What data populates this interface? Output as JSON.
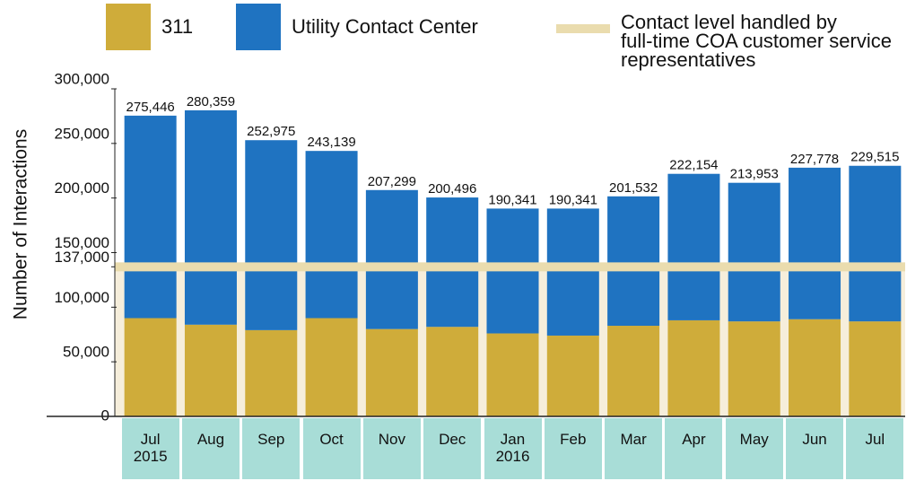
{
  "chart_data": {
    "type": "stacked_bar",
    "y_axis_label": "Number of Interactions",
    "categories": [
      "Jul\n2015",
      "Aug",
      "Sep",
      "Oct",
      "Nov",
      "Dec",
      "Jan\n2016",
      "Feb",
      "Mar",
      "Apr",
      "May",
      "Jun",
      "Jul"
    ],
    "series": [
      {
        "name": "311",
        "color": "#cfac3a",
        "values": [
          90000,
          84000,
          79000,
          90000,
          80000,
          82000,
          76000,
          74000,
          83000,
          88000,
          87000,
          89000,
          87000
        ]
      },
      {
        "name": "Utility Contact Center",
        "color": "#1f73c1",
        "values": [
          185446,
          196359,
          173975,
          153139,
          127299,
          118496,
          114341,
          116341,
          118532,
          134154,
          126953,
          138778,
          142515
        ]
      }
    ],
    "totals": [
      275446,
      280359,
      252975,
      243139,
      207299,
      200496,
      190341,
      190341,
      201532,
      222154,
      213953,
      227778,
      229515
    ],
    "total_labels": [
      "275,446",
      "280,359",
      "252,975",
      "243,139",
      "207,299",
      "200,496",
      "190,341",
      "190,341",
      "201,532",
      "222,154",
      "213,953",
      "227,778",
      "229,515"
    ],
    "reference_line": {
      "value": 137000,
      "label": "Contact level handled by\nfull-time COA customer service\nrepresentatives",
      "color": "#eadcae"
    },
    "ylim": [
      0,
      300000
    ],
    "yticks": [
      0,
      {
        "value": 50000,
        "label": "50,000"
      },
      {
        "value": 100000,
        "label": "100,000"
      },
      {
        "value": 137000,
        "label": "137,000"
      },
      {
        "value": 150000,
        "label": "150,000"
      },
      {
        "value": 200000,
        "label": "200,000"
      },
      {
        "value": 250000,
        "label": "250,000"
      },
      {
        "value": 300000,
        "label": "300,000"
      }
    ]
  }
}
